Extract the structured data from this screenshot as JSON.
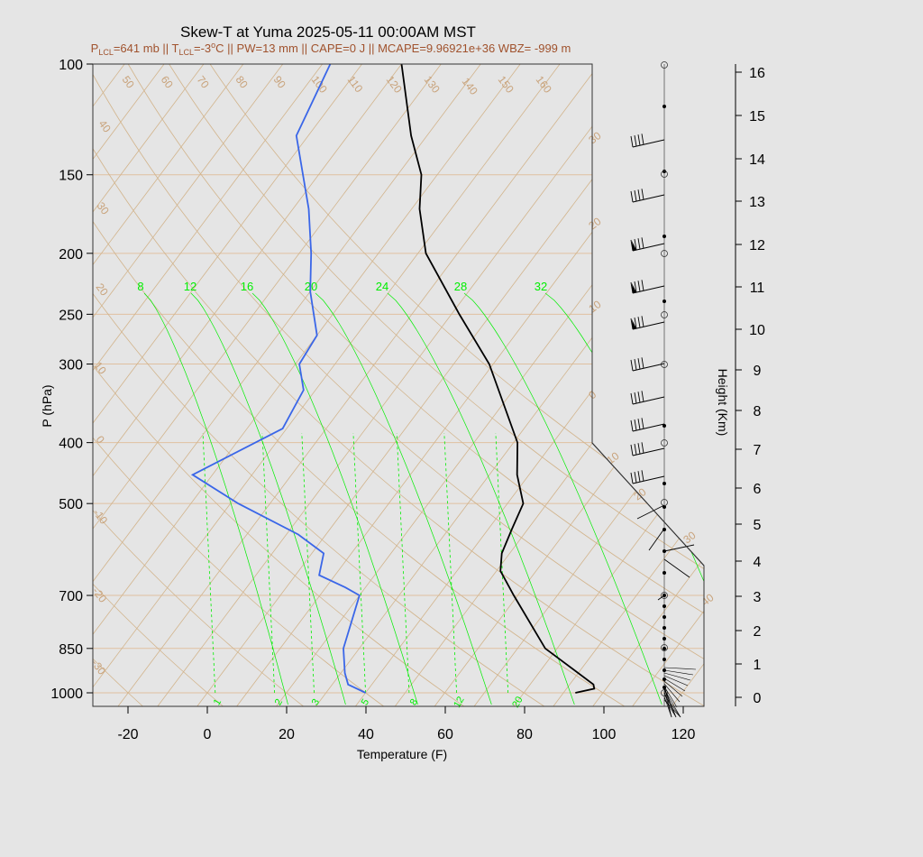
{
  "title": "Skew-T at Yuma 2025-05-11 00:00AM MST",
  "subtitle": {
    "plcl_label": "P",
    "plcl_sub": "LCL",
    "plcl_value": "=641 mb || T",
    "tlcl_sub": "LCL",
    "tlcl_value": "=-3",
    "tlcl_unit_sup": "o",
    "rest": "C || PW=13 mm || CAPE=0 J || MCAPE=9.96921e+36 WBZ= -999 m"
  },
  "colors": {
    "temperature": "#000000",
    "dewpoint": "#3a66e8",
    "isotherm": "#d2b48c",
    "isobar": "#e0c0a0",
    "mixing_ratio": "#00ee00",
    "wind_barb": "#000000"
  },
  "chart_data": {
    "type": "skew-t",
    "xlabel": "Temperature (F)",
    "ylabel": "P (hPa)",
    "y2label": "Height (Km)",
    "x_ticks": [
      "-20",
      "0",
      "20",
      "40",
      "60",
      "80",
      "100",
      "120"
    ],
    "pressure_ticks": [
      "100",
      "150",
      "200",
      "250",
      "300",
      "400",
      "500",
      "700",
      "850",
      "1000"
    ],
    "height_ticks": [
      "0",
      "1",
      "2",
      "3",
      "4",
      "5",
      "6",
      "7",
      "8",
      "9",
      "10",
      "11",
      "12",
      "13",
      "14",
      "15",
      "16"
    ],
    "isotherm_labels_top": [
      "50",
      "60",
      "70",
      "80",
      "90",
      "100",
      "110",
      "120",
      "130",
      "140",
      "150",
      "160"
    ],
    "isotherm_labels_left": [
      "40",
      "30",
      "20",
      "10",
      "0",
      "-10",
      "-20",
      "-30"
    ],
    "isotherm_labels_right": [
      "30",
      "20",
      "10",
      "0",
      "10",
      "20",
      "30",
      "40"
    ],
    "mixing_ratio_labels_top": [
      "8",
      "12",
      "16",
      "20",
      "24",
      "28",
      "32"
    ],
    "mixing_ratio_labels_bottom": [
      "1",
      "2",
      "3",
      "5",
      "8",
      "12",
      "20"
    ],
    "temperature_profile": [
      {
        "p": 1000,
        "t": 93
      },
      {
        "p": 985,
        "t": 97
      },
      {
        "p": 970,
        "t": 96
      },
      {
        "p": 850,
        "t": 77
      },
      {
        "p": 700,
        "t": 59
      },
      {
        "p": 640,
        "t": 51
      },
      {
        "p": 600,
        "t": 48
      },
      {
        "p": 550,
        "t": 46
      },
      {
        "p": 500,
        "t": 44
      },
      {
        "p": 450,
        "t": 37
      },
      {
        "p": 400,
        "t": 31
      },
      {
        "p": 300,
        "t": 9
      },
      {
        "p": 250,
        "t": -8
      },
      {
        "p": 200,
        "t": -28
      },
      {
        "p": 170,
        "t": -38
      },
      {
        "p": 150,
        "t": -44
      },
      {
        "p": 130,
        "t": -54
      },
      {
        "p": 100,
        "t": -70
      }
    ],
    "dewpoint_profile": [
      {
        "p": 1000,
        "t": 40
      },
      {
        "p": 970,
        "t": 34
      },
      {
        "p": 930,
        "t": 31
      },
      {
        "p": 850,
        "t": 26
      },
      {
        "p": 700,
        "t": 20
      },
      {
        "p": 680,
        "t": 15
      },
      {
        "p": 650,
        "t": 6
      },
      {
        "p": 600,
        "t": 3
      },
      {
        "p": 560,
        "t": -7
      },
      {
        "p": 500,
        "t": -28
      },
      {
        "p": 450,
        "t": -45
      },
      {
        "p": 380,
        "t": -31
      },
      {
        "p": 330,
        "t": -33
      },
      {
        "p": 300,
        "t": -39
      },
      {
        "p": 270,
        "t": -40
      },
      {
        "p": 230,
        "t": -50
      },
      {
        "p": 200,
        "t": -57
      },
      {
        "p": 170,
        "t": -66
      },
      {
        "p": 130,
        "t": -83
      },
      {
        "p": 100,
        "t": -88
      }
    ]
  }
}
